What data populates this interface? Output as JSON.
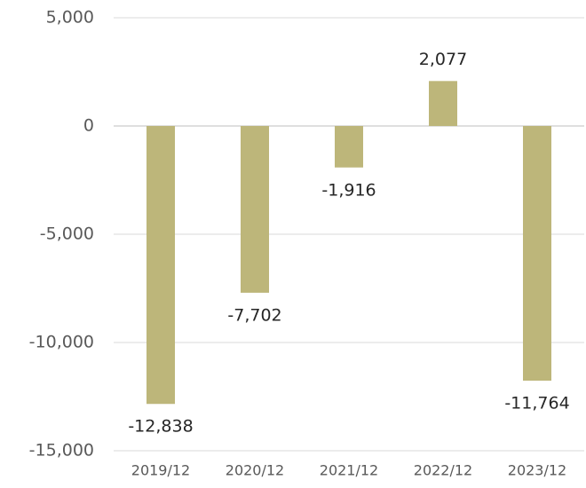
{
  "chart_data": {
    "type": "bar",
    "categories": [
      "2019/12",
      "2020/12",
      "2021/12",
      "2022/12",
      "2023/12"
    ],
    "values": [
      -12838,
      -7702,
      -1916,
      2077,
      -11764
    ],
    "value_labels": [
      "-12,838",
      "-7,702",
      "-1,916",
      "2,077",
      "-11,764"
    ],
    "color": "#bdb67a",
    "ylim": [
      -15000,
      5000
    ],
    "yticks": [
      {
        "value": -15000,
        "label": "-15,000"
      },
      {
        "value": -10000,
        "label": "-10,000"
      },
      {
        "value": -5000,
        "label": "-5,000"
      },
      0,
      {
        "value": 5000,
        "label": "5,000"
      }
    ],
    "grid": true
  }
}
